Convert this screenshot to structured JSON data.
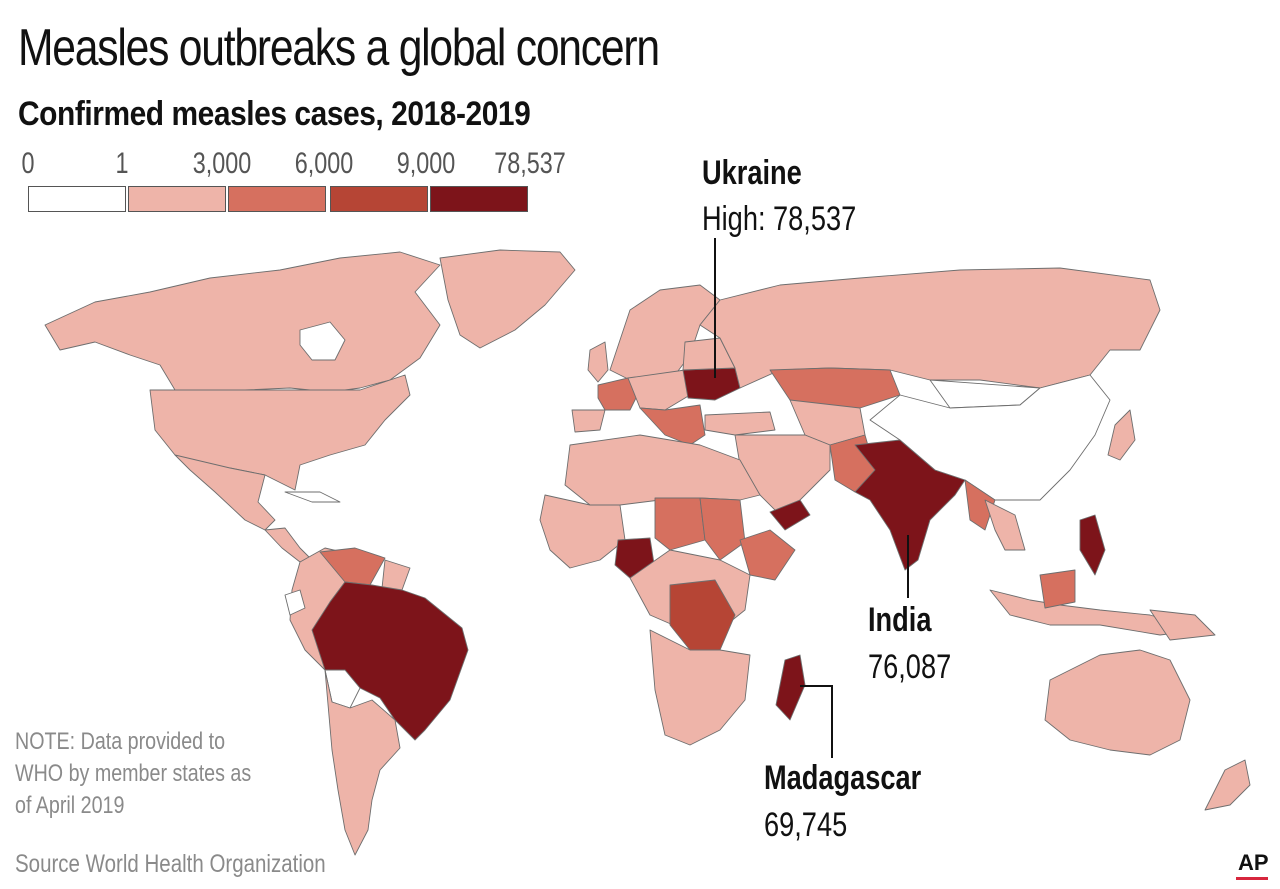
{
  "title": "Measles outbreaks a global concern",
  "subtitle": "Confirmed measles cases, 2018-2019",
  "legend": {
    "ticks": [
      "0",
      "1",
      "3,000",
      "6,000",
      "9,000",
      "78,537"
    ],
    "bins": [
      {
        "from": "0",
        "to": "1",
        "color": "#ffffff"
      },
      {
        "from": "1",
        "to": "3,000",
        "color": "#eeb4a9"
      },
      {
        "from": "3,000",
        "to": "6,000",
        "color": "#d6705f"
      },
      {
        "from": "6,000",
        "to": "9,000",
        "color": "#b64535"
      },
      {
        "from": "9,000",
        "to": "78,537",
        "color": "#7d141a"
      }
    ]
  },
  "colors": {
    "ocean": "#ffffff",
    "border": "#6e6e6e",
    "leader_line": "#111111",
    "note_text": "#8a8a8a",
    "ap_red": "#d7263d"
  },
  "callouts": {
    "ukraine": {
      "name": "Ukraine",
      "value": "High: 78,537"
    },
    "india": {
      "name": "India",
      "value": "76,087"
    },
    "madagascar": {
      "name": "Madagascar",
      "value": "69,745"
    }
  },
  "note": "NOTE: Data provided to WHO by member states as of April 2019",
  "source": "Source World Health Organization",
  "credit": "AP"
}
